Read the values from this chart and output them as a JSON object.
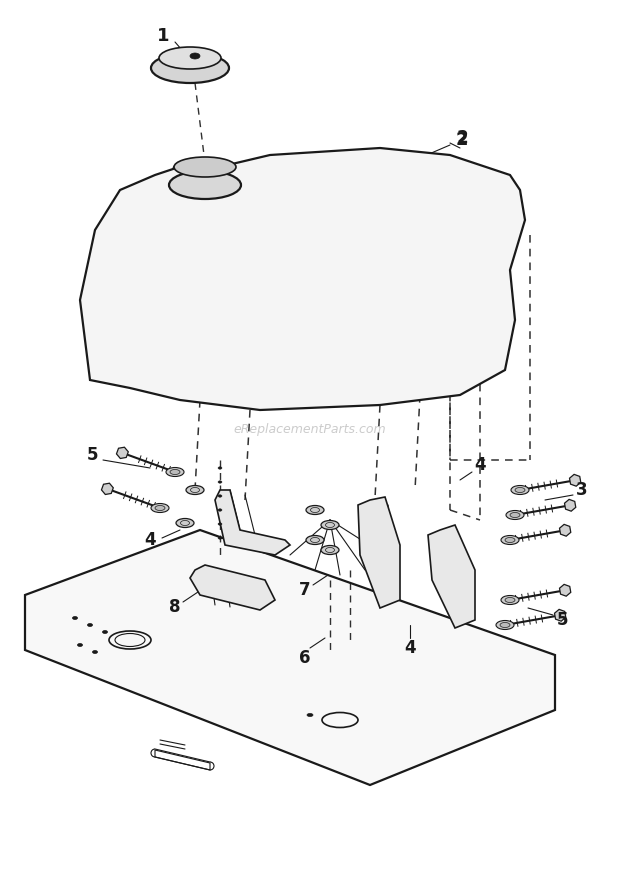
{
  "bg_color": "#ffffff",
  "watermark": "eReplacementParts.com",
  "watermark_color": "#bbbbbb",
  "fig_width": 6.2,
  "fig_height": 8.69,
  "dpi": 100,
  "black": "#1a1a1a",
  "gray_light": "#e0e0e0",
  "gray_mid": "#b0b0b0"
}
